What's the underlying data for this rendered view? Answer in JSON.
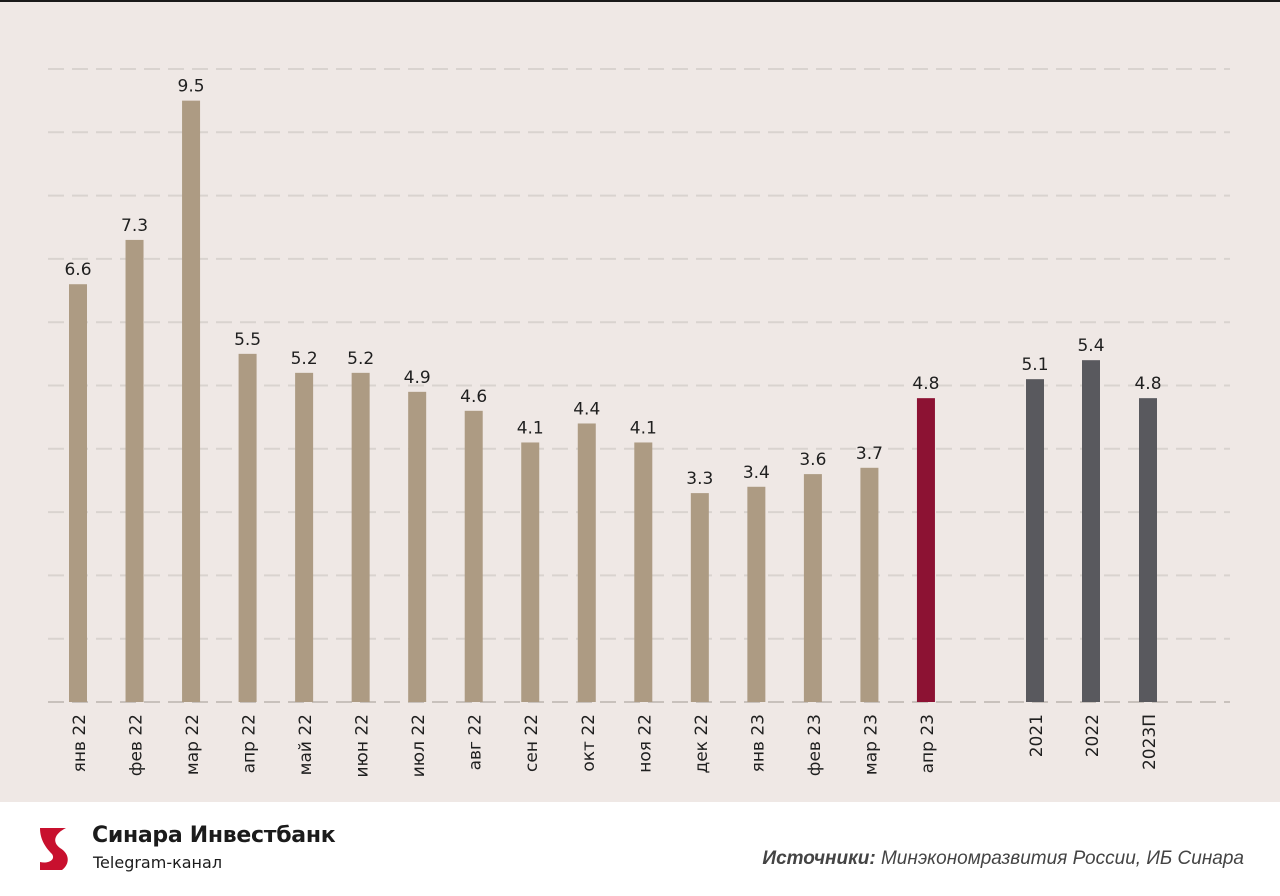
{
  "chart_data": {
    "type": "bar",
    "title": "",
    "xlabel": "",
    "ylabel": "",
    "ylim": [
      0,
      10
    ],
    "grid": true,
    "categories": [
      "янв 22",
      "фев 22",
      "мар 22",
      "апр 22",
      "май 22",
      "июн 22",
      "июл 22",
      "авг 22",
      "сен 22",
      "окт 22",
      "ноя 22",
      "дек 22",
      "янв 23",
      "фев 23",
      "мар 23",
      "апр 23",
      "2021",
      "2022",
      "2023П"
    ],
    "values": [
      6.6,
      7.3,
      9.5,
      5.5,
      5.2,
      5.2,
      4.9,
      4.6,
      4.1,
      4.4,
      4.1,
      3.3,
      3.4,
      3.6,
      3.7,
      4.8,
      5.1,
      5.4,
      4.8
    ],
    "value_labels": [
      "6.6",
      "7.3",
      "9.5",
      "5.5",
      "5.2",
      "5.2",
      "4.9",
      "4.6",
      "4.1",
      "4.4",
      "4.1",
      "3.3",
      "3.4",
      "3.6",
      "3.7",
      "4.8",
      "5.1",
      "5.4",
      "4.8"
    ],
    "colors": {
      "monthly": "#ad9b83",
      "highlight": "#8c1233",
      "annual": "#59595e",
      "grid": "#d9d3cf",
      "baseline": "#c8c1bc",
      "text": "#1f1f1f"
    },
    "highlight_index": 15,
    "annual_start_index": 16
  },
  "footer": {
    "brand_name": "Синара Инвестбанк",
    "brand_sub": "Telegram-канал",
    "sources_label": "Источники:",
    "sources_text": " Минэкономразвития России, ИБ Синара",
    "logo_color": "#c8102e"
  }
}
